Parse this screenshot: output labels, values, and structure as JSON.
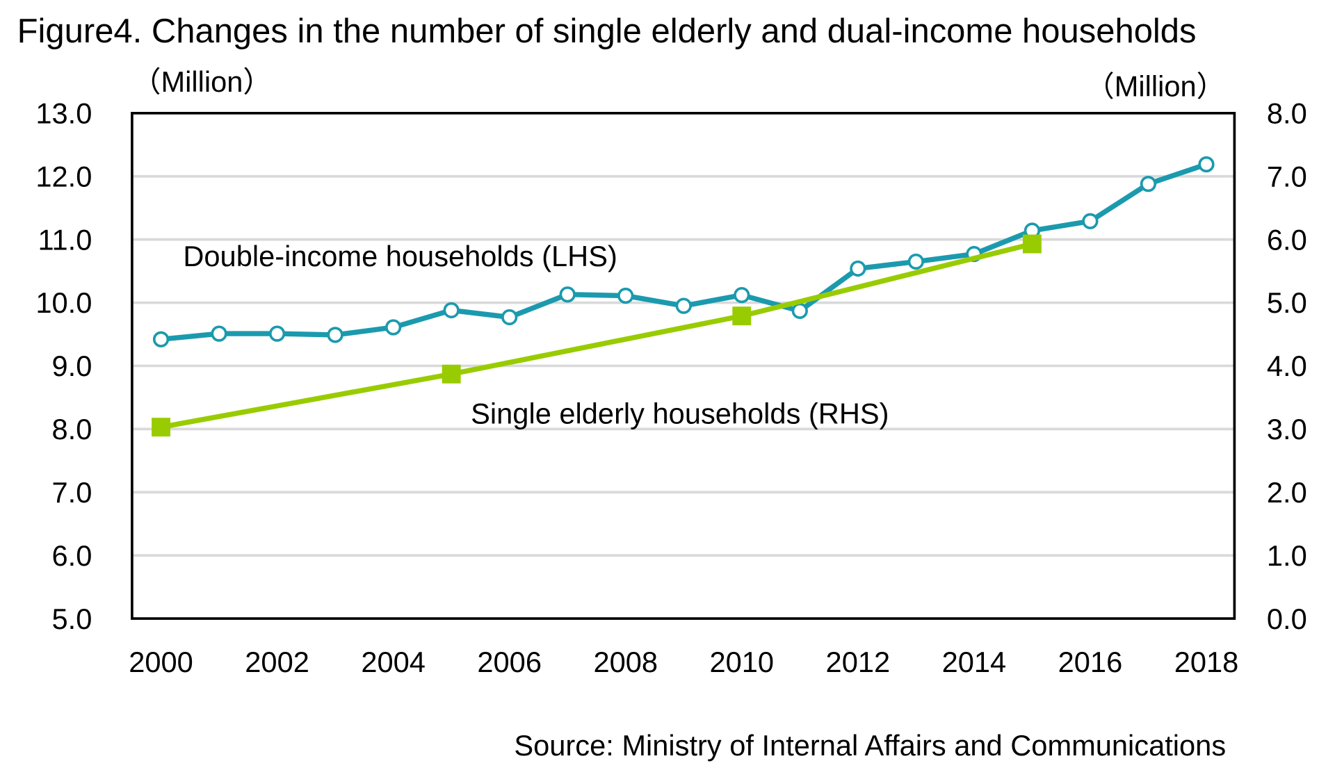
{
  "chart_data": {
    "type": "line",
    "title": "Figure4. Changes in the number of single elderly and dual-income households",
    "y_left_unit": "（Million）",
    "y_right_unit": "（Million）",
    "source": "Source: Ministry of Internal Affairs and Communications",
    "ylim_left": [
      5.0,
      13.0
    ],
    "ylim_right": [
      0.0,
      8.0
    ],
    "y_left_ticks": [
      "5.0",
      "6.0",
      "7.0",
      "8.0",
      "9.0",
      "10.0",
      "11.0",
      "12.0",
      "13.0"
    ],
    "y_right_ticks": [
      "0.0",
      "1.0",
      "2.0",
      "3.0",
      "4.0",
      "5.0",
      "6.0",
      "7.0",
      "8.0"
    ],
    "x_ticks": [
      "2000",
      "2002",
      "2004",
      "2006",
      "2008",
      "2010",
      "2012",
      "2014",
      "2016",
      "2018"
    ],
    "grid": true,
    "series": [
      {
        "name": "Double-income households (LHS)",
        "axis": "left",
        "color": "#1b9aae",
        "marker": "open-circle",
        "x": [
          2000,
          2001,
          2002,
          2003,
          2004,
          2005,
          2006,
          2007,
          2008,
          2009,
          2010,
          2011,
          2012,
          2013,
          2014,
          2015,
          2016,
          2017,
          2018
        ],
        "values": [
          9.42,
          9.51,
          9.51,
          9.49,
          9.61,
          9.88,
          9.77,
          10.13,
          10.11,
          9.95,
          10.12,
          9.87,
          10.54,
          10.65,
          10.77,
          11.14,
          11.29,
          11.88,
          12.19
        ]
      },
      {
        "name": "Single elderly households (RHS)",
        "axis": "right",
        "color": "#99cc00",
        "marker": "square",
        "x": [
          2000,
          2005,
          2010,
          2015
        ],
        "values": [
          3.03,
          3.87,
          4.79,
          5.93
        ]
      }
    ]
  }
}
